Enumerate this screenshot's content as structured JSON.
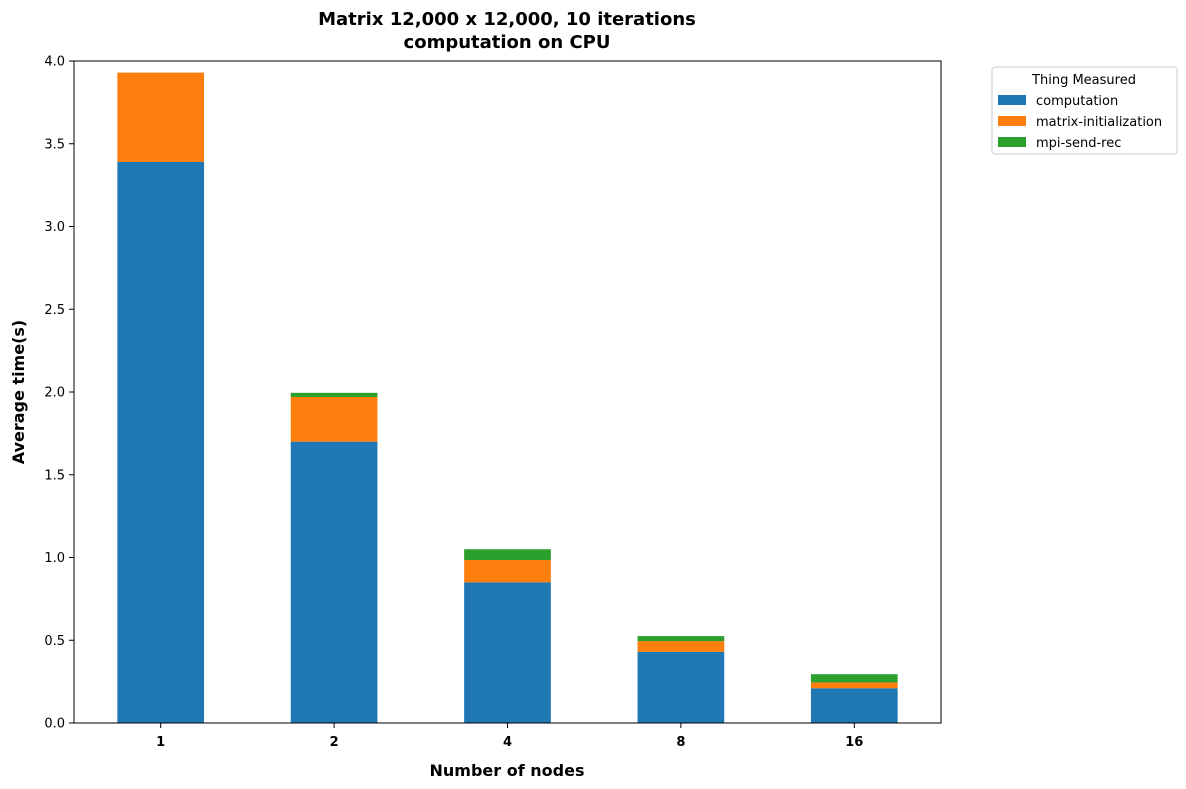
{
  "chart_data": {
    "type": "bar",
    "stacked": true,
    "title": [
      "Matrix 12,000 x 12,000, 10 iterations",
      "computation on CPU"
    ],
    "xlabel": "Number of nodes",
    "ylabel": "Average time(s)",
    "categories": [
      "1",
      "2",
      "4",
      "8",
      "16"
    ],
    "ylim": [
      0,
      4.0
    ],
    "yticks": [
      "0.0",
      "0.5",
      "1.0",
      "1.5",
      "2.0",
      "2.5",
      "3.0",
      "3.5",
      "4.0"
    ],
    "grid": false,
    "legend": {
      "title": "Thing Measured",
      "placement": "outside-top-right"
    },
    "series": [
      {
        "name": "computation",
        "color": "#1f77b4",
        "values": [
          3.39,
          1.7,
          0.85,
          0.43,
          0.21
        ]
      },
      {
        "name": "matrix-initialization",
        "color": "#ff7f0e",
        "values": [
          0.54,
          0.27,
          0.135,
          0.065,
          0.035
        ]
      },
      {
        "name": "mpi-send-rec",
        "color": "#2ca02c",
        "values": [
          0.0,
          0.025,
          0.065,
          0.03,
          0.05
        ]
      }
    ]
  }
}
